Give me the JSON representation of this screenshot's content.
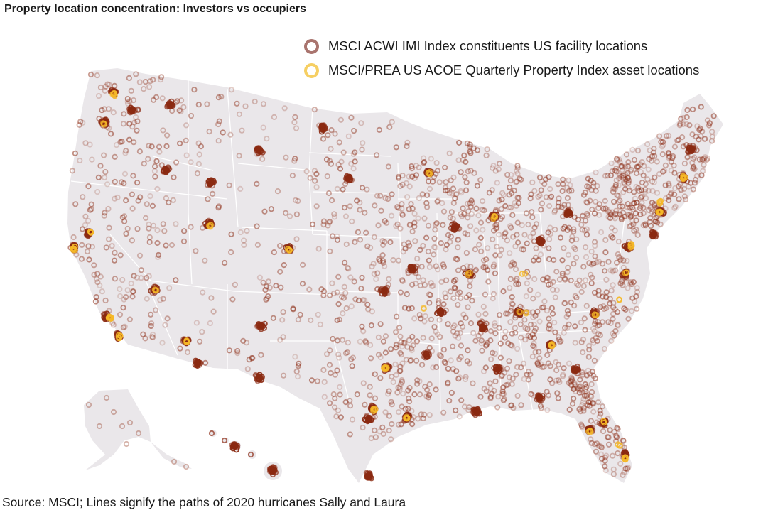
{
  "title": "Property location concentration: Investors vs occupiers",
  "legend": [
    {
      "label": "MSCI ACWI IMI Index constituents US facility locations",
      "color": "#a9746e"
    },
    {
      "label": "MSCI/PREA US ACOE Quarterly Property Index asset locations",
      "color": "#f6cf63"
    }
  ],
  "source": "Source: MSCI; Lines signify the paths of 2020 hurricanes Sally and Laura",
  "colors": {
    "land": "#eae7ea",
    "state_border": "#ffffff",
    "facility_marker": "#8b2a12",
    "asset_marker": "#f5b828"
  }
}
